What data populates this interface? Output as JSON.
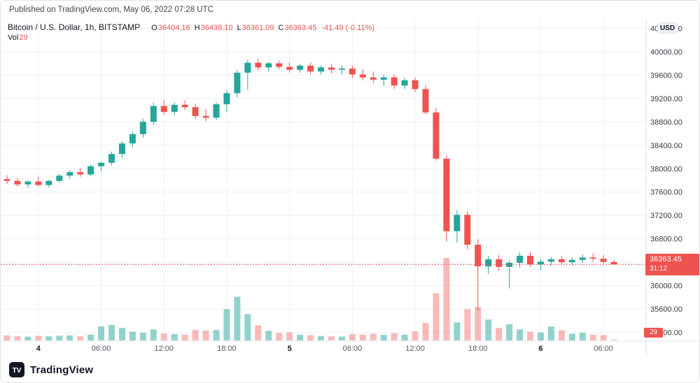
{
  "published": "Published on TradingView.com, May 06, 2022 07:28 UTC",
  "header": {
    "symbol": "Bitcoin / U.S. Dollar, 1h, BITSTAMP",
    "o_label": "O",
    "o": "36404.16",
    "h_label": "H",
    "h": "36438.10",
    "l_label": "L",
    "l": "36361.09",
    "c_label": "C",
    "c": "36363.45",
    "change": "-41.49 (-0.11%)",
    "vol_label": "Vol",
    "vol_value": "29"
  },
  "axis": {
    "currency": "USD",
    "price_box": {
      "price": "36363.45",
      "countdown": "31:12"
    },
    "vol_box": "29"
  },
  "footer": {
    "brand": "TradingView"
  },
  "colors": {
    "up": "#26a69a",
    "down": "#ef5350",
    "up_volume": "rgba(38,166,154,0.5)",
    "down_volume": "rgba(239,83,80,0.4)",
    "grid": "#eef0f3",
    "axis_border": "#e0e3eb",
    "axis_text": "#363a45",
    "tick_text": "#555a64",
    "day_tick_text": "#131722",
    "last_price_line": "#ef5350"
  },
  "chart_data": {
    "type": "candlestick",
    "title": "Bitcoin / U.S. Dollar, 1h, BITSTAMP",
    "interval": "1h",
    "last_price": 36363.45,
    "price_axis": {
      "label_min": 35200,
      "label_max": 40400,
      "step": 400,
      "view_min": 35040,
      "view_max": 40560
    },
    "x_ticks": [
      {
        "index": 3,
        "label": "4",
        "day": true
      },
      {
        "index": 9,
        "label": "06:00",
        "day": false
      },
      {
        "index": 15,
        "label": "12:00",
        "day": false
      },
      {
        "index": 21,
        "label": "18:00",
        "day": false
      },
      {
        "index": 27,
        "label": "5",
        "day": true
      },
      {
        "index": 33,
        "label": "06:00",
        "day": false
      },
      {
        "index": 39,
        "label": "12:00",
        "day": false
      },
      {
        "index": 45,
        "label": "18:00",
        "day": false
      },
      {
        "index": 51,
        "label": "6",
        "day": true
      },
      {
        "index": 57,
        "label": "06:00",
        "day": false
      }
    ],
    "candles_legend": [
      "time",
      "open",
      "high",
      "low",
      "close",
      "volume"
    ],
    "candles": [
      [
        "May 3 21:00",
        37820,
        37890,
        37740,
        37790,
        170
      ],
      [
        "May 3 22:00",
        37790,
        37840,
        37690,
        37730,
        150
      ],
      [
        "May 3 23:00",
        37730,
        37800,
        37670,
        37780,
        130
      ],
      [
        "May 4 00:00",
        37780,
        37860,
        37690,
        37720,
        160
      ],
      [
        "May 4 01:00",
        37720,
        37810,
        37680,
        37790,
        140
      ],
      [
        "May 4 02:00",
        37790,
        37910,
        37760,
        37880,
        160
      ],
      [
        "May 4 03:00",
        37880,
        37970,
        37820,
        37940,
        170
      ],
      [
        "May 4 04:00",
        37940,
        38010,
        37860,
        37900,
        140
      ],
      [
        "May 4 05:00",
        37900,
        38070,
        37870,
        38040,
        200
      ],
      [
        "May 4 06:00",
        38040,
        38130,
        37960,
        38100,
        480
      ],
      [
        "May 4 07:00",
        38100,
        38290,
        38050,
        38250,
        530
      ],
      [
        "May 4 08:00",
        38250,
        38470,
        38190,
        38430,
        430
      ],
      [
        "May 4 09:00",
        38430,
        38630,
        38370,
        38590,
        300
      ],
      [
        "May 4 10:00",
        38590,
        38850,
        38530,
        38800,
        260
      ],
      [
        "May 4 11:00",
        38800,
        39130,
        38750,
        39070,
        380
      ],
      [
        "May 4 12:00",
        39070,
        39170,
        38920,
        38970,
        240
      ],
      [
        "May 4 13:00",
        38970,
        39130,
        38910,
        39090,
        220
      ],
      [
        "May 4 14:00",
        39090,
        39170,
        39000,
        39050,
        200
      ],
      [
        "May 4 15:00",
        39050,
        39110,
        38850,
        38900,
        360
      ],
      [
        "May 4 16:00",
        38900,
        39020,
        38810,
        38870,
        340
      ],
      [
        "May 4 17:00",
        38870,
        39130,
        38830,
        39100,
        360
      ],
      [
        "May 4 18:00",
        39100,
        39340,
        38970,
        39290,
        1080
      ],
      [
        "May 4 19:00",
        39290,
        39690,
        39220,
        39640,
        1510
      ],
      [
        "May 4 20:00",
        39640,
        39860,
        39350,
        39810,
        910
      ],
      [
        "May 4 21:00",
        39810,
        39880,
        39680,
        39730,
        520
      ],
      [
        "May 4 22:00",
        39730,
        39830,
        39660,
        39800,
        330
      ],
      [
        "May 4 23:00",
        39800,
        39850,
        39700,
        39740,
        260
      ],
      [
        "May 5 00:00",
        39740,
        39810,
        39640,
        39690,
        280
      ],
      [
        "May 5 01:00",
        39690,
        39790,
        39640,
        39760,
        190
      ],
      [
        "May 5 02:00",
        39760,
        39810,
        39620,
        39660,
        180
      ],
      [
        "May 5 03:00",
        39660,
        39760,
        39610,
        39730,
        150
      ],
      [
        "May 5 04:00",
        39730,
        39790,
        39630,
        39690,
        140
      ],
      [
        "May 5 05:00",
        39690,
        39760,
        39610,
        39710,
        130
      ],
      [
        "May 5 06:00",
        39710,
        39760,
        39550,
        39610,
        220
      ],
      [
        "May 5 07:00",
        39610,
        39700,
        39510,
        39560,
        200
      ],
      [
        "May 5 08:00",
        39560,
        39660,
        39460,
        39520,
        230
      ],
      [
        "May 5 09:00",
        39520,
        39610,
        39410,
        39560,
        190
      ],
      [
        "May 5 10:00",
        39560,
        39610,
        39360,
        39420,
        250
      ],
      [
        "May 5 11:00",
        39420,
        39560,
        39360,
        39510,
        200
      ],
      [
        "May 5 12:00",
        39510,
        39560,
        39310,
        39360,
        310
      ],
      [
        "May 5 13:00",
        39360,
        39420,
        38930,
        38960,
        600
      ],
      [
        "May 5 14:00",
        38960,
        39040,
        38140,
        38170,
        1630
      ],
      [
        "May 5 15:00",
        38170,
        38220,
        36750,
        36930,
        2850
      ],
      [
        "May 5 16:00",
        36930,
        37290,
        36740,
        37210,
        620
      ],
      [
        "May 5 17:00",
        37210,
        37270,
        36620,
        36700,
        1080
      ],
      [
        "May 5 18:00",
        36700,
        36790,
        35580,
        36330,
        1150
      ],
      [
        "May 5 19:00",
        36330,
        36510,
        36200,
        36450,
        720
      ],
      [
        "May 5 20:00",
        36450,
        36520,
        36250,
        36320,
        430
      ],
      [
        "May 5 21:00",
        36320,
        36430,
        35950,
        36390,
        560
      ],
      [
        "May 5 22:00",
        36390,
        36570,
        36310,
        36510,
        380
      ],
      [
        "May 5 23:00",
        36510,
        36570,
        36320,
        36360,
        300
      ],
      [
        "May 6 00:00",
        36360,
        36450,
        36260,
        36410,
        270
      ],
      [
        "May 6 01:00",
        36410,
        36490,
        36340,
        36450,
        480
      ],
      [
        "May 6 02:00",
        36450,
        36510,
        36360,
        36400,
        350
      ],
      [
        "May 6 03:00",
        36400,
        36480,
        36350,
        36440,
        230
      ],
      [
        "May 6 04:00",
        36440,
        36530,
        36390,
        36480,
        260
      ],
      [
        "May 6 05:00",
        36480,
        36550,
        36410,
        36460,
        200
      ],
      [
        "May 6 06:00",
        36460,
        36520,
        36380,
        36404.94,
        180
      ],
      [
        "May 6 07:00",
        36404.16,
        36438.1,
        36361.09,
        36363.45,
        29
      ]
    ]
  }
}
